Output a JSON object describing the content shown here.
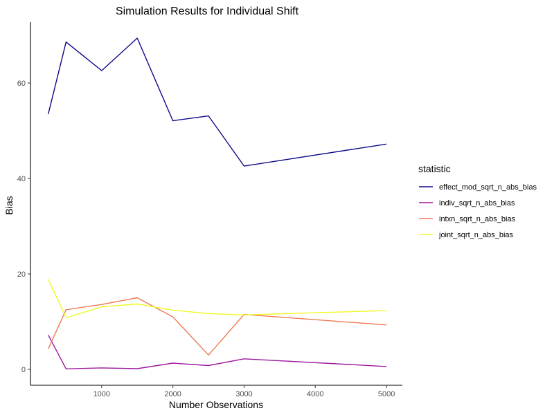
{
  "chart_data": {
    "type": "line",
    "title": "Simulation Results for Individual Shift",
    "xlabel": "Number Observations",
    "ylabel": "Bias",
    "xlim": [
      0,
      5000
    ],
    "ylim": [
      0,
      70
    ],
    "x_ticks": [
      1000,
      2000,
      3000,
      4000,
      5000
    ],
    "y_ticks": [
      0,
      20,
      40,
      60
    ],
    "grid": false,
    "legend": {
      "title": "statistic",
      "position": "right"
    },
    "x": [
      250,
      500,
      1000,
      1500,
      2000,
      2500,
      3000,
      5000
    ],
    "series": [
      {
        "name": "effect_mod_sqrt_n_abs_bias",
        "color": "#0d0887",
        "values": [
          53.5,
          68.6,
          62.6,
          69.4,
          52.1,
          53.1,
          42.6,
          47.2
        ]
      },
      {
        "name": "indiv_sqrt_n_abs_bias",
        "color": "#9c179e",
        "values": [
          7.2,
          0.1,
          0.3,
          0.15,
          1.3,
          0.8,
          2.2,
          0.6
        ]
      },
      {
        "name": "intxn_sqrt_n_abs_bias",
        "color": "#ed7953",
        "values": [
          4.3,
          12.5,
          13.6,
          15.0,
          11.0,
          3.0,
          11.5,
          9.3
        ]
      },
      {
        "name": "joint_sqrt_n_abs_bias",
        "color": "#f0f921",
        "values": [
          18.9,
          10.8,
          13.1,
          13.7,
          12.4,
          11.7,
          11.4,
          12.3
        ]
      }
    ]
  }
}
